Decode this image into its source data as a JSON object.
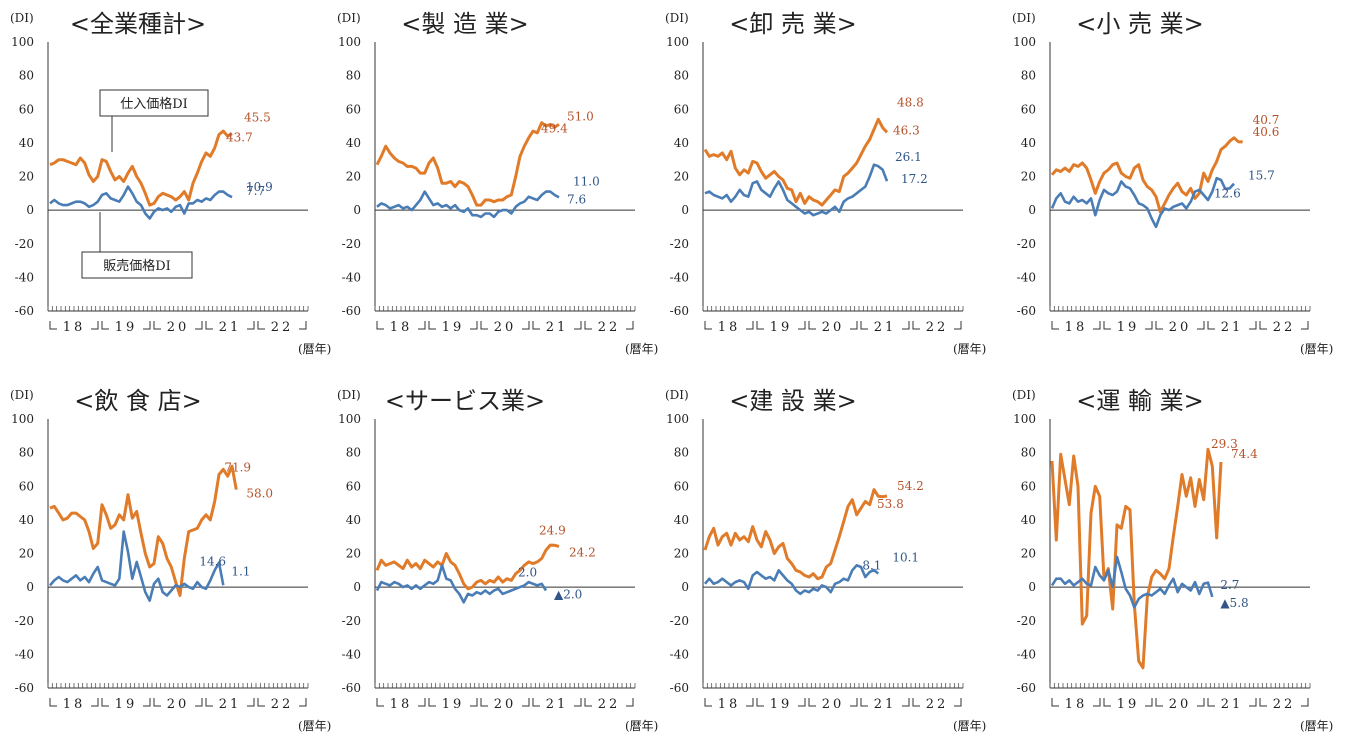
{
  "chart_data": [
    {
      "type": "line",
      "title": "<全業種計>",
      "ylabel": "(DI)",
      "xlabel": "(暦年)",
      "ylim": [
        -60,
        100
      ],
      "yticks": [
        "100",
        "80",
        "60",
        "40",
        "20",
        "0",
        "-20",
        "-40",
        "-60"
      ],
      "xticks": [
        "18",
        "19",
        "20",
        "21",
        "22"
      ],
      "callouts": [
        "仕入価格DI",
        "販売価格DI"
      ],
      "series": [
        {
          "color": "#E07B29",
          "labels": [
            "45.5",
            "43.7"
          ],
          "values": [
            27,
            28,
            30,
            30,
            29,
            28,
            27,
            31,
            28,
            21,
            17,
            20,
            30,
            29,
            23,
            18,
            20,
            17,
            22,
            26,
            20,
            16,
            10,
            3,
            4,
            8,
            10,
            9,
            8,
            6,
            8,
            11,
            6,
            16,
            22,
            29,
            34,
            32,
            37,
            45,
            47,
            44,
            45.5
          ]
        },
        {
          "color": "#4A7DB5",
          "labels": [
            "10.9",
            "7.7"
          ],
          "values": [
            4,
            6,
            4,
            3,
            3,
            4,
            5,
            5,
            4,
            2,
            3,
            5,
            9,
            10,
            7,
            6,
            5,
            9,
            14,
            10,
            5,
            3,
            -2,
            -5,
            -1,
            1,
            0,
            1,
            -1,
            2,
            3,
            -2,
            4,
            4,
            6,
            5,
            7,
            6,
            9,
            11,
            11,
            9,
            7.7
          ]
        }
      ]
    },
    {
      "type": "line",
      "title": "<製 造 業>",
      "ylabel": "(DI)",
      "xlabel": "(暦年)",
      "ylim": [
        -60,
        100
      ],
      "yticks": [
        "100",
        "80",
        "60",
        "40",
        "20",
        "0",
        "-20",
        "-40",
        "-60"
      ],
      "xticks": [
        "18",
        "19",
        "20",
        "21",
        "22"
      ],
      "series": [
        {
          "color": "#E07B29",
          "labels": [
            "51.0",
            "49.4"
          ],
          "values": [
            27,
            32,
            38,
            34,
            31,
            29,
            28,
            26,
            26,
            25,
            22,
            22,
            28,
            31,
            25,
            16,
            16,
            17,
            14,
            17,
            16,
            14,
            9,
            3,
            3,
            6,
            6,
            5,
            6,
            6,
            8,
            9,
            20,
            32,
            38,
            43,
            47,
            46,
            52,
            50,
            51,
            49.4,
            51
          ]
        },
        {
          "color": "#4A7DB5",
          "labels": [
            "11.0",
            "7.6"
          ],
          "values": [
            2,
            4,
            3,
            1,
            2,
            3,
            1,
            2,
            0,
            3,
            6,
            11,
            7,
            3,
            4,
            2,
            3,
            1,
            3,
            0,
            -1,
            1,
            -3,
            -3,
            -4,
            -2,
            -2,
            -4,
            -1,
            0,
            0,
            -2,
            2,
            4,
            5,
            8,
            7,
            6,
            9,
            11,
            11,
            9,
            7.6
          ]
        }
      ]
    },
    {
      "type": "line",
      "title": "<卸 売 業>",
      "ylabel": "(DI)",
      "xlabel": "(暦年)",
      "ylim": [
        -60,
        100
      ],
      "yticks": [
        "100",
        "80",
        "60",
        "40",
        "20",
        "0",
        "-20",
        "-40",
        "-60"
      ],
      "xticks": [
        "18",
        "19",
        "20",
        "21",
        "22"
      ],
      "series": [
        {
          "color": "#E07B29",
          "labels": [
            "48.8",
            "46.3"
          ],
          "values": [
            36,
            32,
            33,
            32,
            34,
            30,
            35,
            25,
            21,
            24,
            22,
            29,
            28,
            23,
            19,
            21,
            23,
            20,
            18,
            13,
            12,
            5,
            10,
            4,
            8,
            6,
            5,
            3,
            6,
            9,
            12,
            11,
            20,
            22,
            25,
            28,
            33,
            38,
            42,
            48,
            54,
            49,
            46.3
          ]
        },
        {
          "color": "#4A7DB5",
          "labels": [
            "26.1",
            "17.2"
          ],
          "values": [
            10,
            11,
            9,
            8,
            7,
            9,
            5,
            8,
            12,
            9,
            8,
            16,
            17,
            12,
            10,
            8,
            13,
            17,
            12,
            6,
            4,
            2,
            0,
            -2,
            -1,
            -3,
            -2,
            -1,
            -2,
            0,
            2,
            -1,
            5,
            7,
            8,
            10,
            12,
            14,
            20,
            27,
            26.1,
            24,
            17.2
          ]
        }
      ]
    },
    {
      "type": "line",
      "title": "<小 売 業>",
      "ylabel": "(DI)",
      "xlabel": "(暦年)",
      "ylim": [
        -60,
        100
      ],
      "yticks": [
        "100",
        "80",
        "60",
        "40",
        "20",
        "0",
        "-20",
        "-40",
        "-60"
      ],
      "xticks": [
        "18",
        "19",
        "20",
        "21",
        "22"
      ],
      "series": [
        {
          "color": "#E07B29",
          "labels": [
            "40.7",
            "40.6"
          ],
          "values": [
            21,
            24,
            23,
            25,
            23,
            27,
            26,
            28,
            25,
            18,
            10,
            17,
            22,
            24,
            27,
            28,
            22,
            20,
            19,
            25,
            27,
            18,
            14,
            12,
            8,
            -1,
            4,
            9,
            13,
            16,
            11,
            9,
            13,
            7,
            10,
            22,
            17,
            24,
            29,
            36,
            38,
            41,
            43,
            40.7,
            40.6
          ]
        },
        {
          "color": "#4A7DB5",
          "labels": [
            "15.7",
            "12.6"
          ],
          "values": [
            1,
            7,
            10,
            5,
            4,
            8,
            5,
            6,
            4,
            7,
            -3,
            6,
            12,
            10,
            9,
            11,
            17,
            14,
            13,
            9,
            4,
            3,
            1,
            -5,
            -10,
            -3,
            1,
            0,
            2,
            3,
            4,
            1,
            5,
            11,
            12,
            9,
            6,
            11,
            19,
            18,
            12.6,
            13,
            15.7
          ]
        }
      ]
    },
    {
      "type": "line",
      "title": "<飲 食 店>",
      "ylabel": "(DI)",
      "xlabel": "(暦年)",
      "ylim": [
        -60,
        100
      ],
      "yticks": [
        "100",
        "80",
        "60",
        "40",
        "20",
        "0",
        "-20",
        "-40",
        "-60"
      ],
      "xticks": [
        "18",
        "19",
        "20",
        "21",
        "22"
      ],
      "series": [
        {
          "color": "#E07B29",
          "labels": [
            "71.9",
            "58.0"
          ],
          "values": [
            47,
            48,
            44,
            40,
            41,
            44,
            44,
            42,
            40,
            33,
            23,
            26,
            49,
            43,
            35,
            37,
            43,
            40,
            55,
            41,
            45,
            32,
            20,
            12,
            14,
            30,
            26,
            17,
            12,
            3,
            -5,
            17,
            33,
            34,
            35,
            40,
            43,
            40,
            51,
            67,
            70,
            66,
            71.9,
            58
          ]
        },
        {
          "color": "#4A7DB5",
          "labels": [
            "14.6",
            "1.1"
          ],
          "values": [
            1,
            4,
            6,
            4,
            3,
            5,
            7,
            4,
            6,
            3,
            8,
            12,
            4,
            3,
            2,
            1,
            5,
            33,
            21,
            5,
            15,
            6,
            -3,
            -8,
            2,
            5,
            -3,
            -5,
            -2,
            1,
            0,
            2,
            0,
            -1,
            3,
            0,
            -1,
            4,
            10,
            14.6,
            1.1
          ]
        }
      ]
    },
    {
      "type": "line",
      "title": "<サービス業>",
      "ylabel": "(DI)",
      "xlabel": "(暦年)",
      "ylim": [
        -60,
        100
      ],
      "yticks": [
        "100",
        "80",
        "60",
        "40",
        "20",
        "0",
        "-20",
        "-40",
        "-60"
      ],
      "xticks": [
        "18",
        "19",
        "20",
        "21",
        "22"
      ],
      "series": [
        {
          "color": "#E07B29",
          "labels": [
            "24.9",
            "24.2"
          ],
          "values": [
            10,
            16,
            13,
            14,
            15,
            13,
            11,
            16,
            12,
            14,
            11,
            16,
            14,
            12,
            15,
            13,
            20,
            15,
            13,
            8,
            2,
            -1,
            0,
            3,
            4,
            2,
            4,
            3,
            6,
            3,
            5,
            4,
            8,
            10,
            13,
            15,
            14,
            15,
            17,
            22,
            25,
            24.9,
            24.2
          ]
        },
        {
          "color": "#4A7DB5",
          "labels": [
            "2.0",
            "▲2.0"
          ],
          "values": [
            -2,
            3,
            2,
            1,
            3,
            2,
            0,
            1,
            -1,
            1,
            -1,
            1,
            3,
            2,
            4,
            13,
            5,
            4,
            -1,
            -4,
            -9,
            -4,
            -5,
            -3,
            -4,
            -2,
            -4,
            -2,
            -1,
            -4,
            -3,
            -2,
            -1,
            0,
            1,
            3,
            2,
            1,
            2,
            -2
          ]
        }
      ]
    },
    {
      "type": "line",
      "title": "<建 設 業>",
      "ylabel": "(DI)",
      "xlabel": "(暦年)",
      "ylim": [
        -60,
        100
      ],
      "yticks": [
        "100",
        "80",
        "60",
        "40",
        "20",
        "0",
        "-20",
        "-40",
        "-60"
      ],
      "xticks": [
        "18",
        "19",
        "20",
        "21",
        "22"
      ],
      "series": [
        {
          "color": "#E07B29",
          "labels": [
            "54.2",
            "53.8"
          ],
          "values": [
            22,
            30,
            35,
            25,
            30,
            32,
            25,
            32,
            28,
            30,
            27,
            36,
            28,
            24,
            33,
            28,
            20,
            24,
            26,
            17,
            14,
            10,
            9,
            7,
            6,
            8,
            5,
            6,
            12,
            14,
            22,
            30,
            39,
            48,
            52,
            43,
            47,
            51,
            49,
            58,
            54,
            53.8,
            54.2
          ]
        },
        {
          "color": "#4A7DB5",
          "labels": [
            "10.1",
            "8.1"
          ],
          "values": [
            2,
            5,
            2,
            3,
            5,
            3,
            1,
            3,
            4,
            3,
            -1,
            7,
            9,
            7,
            5,
            6,
            4,
            10,
            7,
            4,
            2,
            -2,
            -4,
            -2,
            -3,
            -1,
            -2,
            1,
            0,
            -3,
            2,
            3,
            5,
            4,
            10,
            13,
            12,
            6,
            9,
            10.1,
            8.1
          ]
        }
      ]
    },
    {
      "type": "line",
      "title": "<運 輸 業>",
      "ylabel": "(DI)",
      "xlabel": "(暦年)",
      "ylim": [
        -60,
        100
      ],
      "yticks": [
        "100",
        "80",
        "60",
        "40",
        "20",
        "0",
        "-20",
        "-40",
        "-60"
      ],
      "xticks": [
        "18",
        "19",
        "20",
        "21",
        "22"
      ],
      "series": [
        {
          "color": "#E07B29",
          "labels": [
            "74.4",
            "29.3"
          ],
          "values": [
            75,
            28,
            79,
            64,
            49,
            78,
            60,
            -22,
            -17,
            44,
            60,
            54,
            5,
            11,
            -13,
            37,
            35,
            48,
            46,
            -10,
            -44,
            -48,
            -6,
            6,
            10,
            8,
            5,
            11,
            30,
            48,
            67,
            54,
            65,
            48,
            64,
            52,
            82,
            72,
            29.3,
            74.4
          ]
        },
        {
          "color": "#4A7DB5",
          "labels": [
            "2.7",
            "▲5.8"
          ],
          "values": [
            1,
            5,
            5,
            2,
            4,
            1,
            3,
            5,
            2,
            1,
            12,
            7,
            4,
            10,
            0,
            18,
            9,
            -1,
            -5,
            -12,
            -7,
            -5,
            -4,
            -5,
            -3,
            -1,
            -4,
            1,
            5,
            -3,
            2,
            0,
            -2,
            3,
            -4,
            2,
            2.7,
            -5.8
          ]
        }
      ]
    }
  ]
}
